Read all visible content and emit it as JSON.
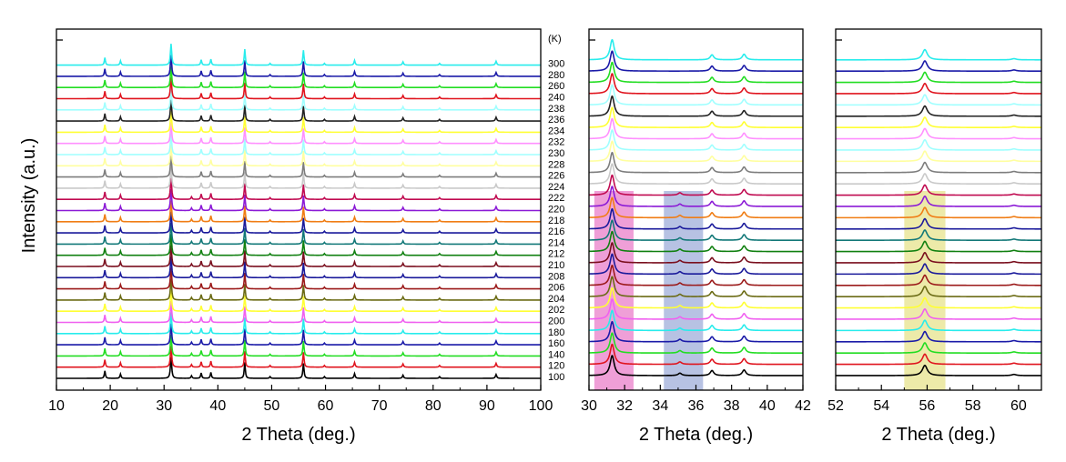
{
  "chart_data": {
    "type": "line",
    "ylabel": "Intensity (a.u.)",
    "temperature_unit_label": "(K)",
    "temperatures": [
      100,
      120,
      140,
      160,
      180,
      200,
      202,
      204,
      206,
      208,
      210,
      212,
      214,
      216,
      218,
      220,
      222,
      224,
      226,
      228,
      230,
      232,
      234,
      236,
      238,
      240,
      260,
      280,
      300
    ],
    "series_colors": [
      "#000000",
      "#e0141e",
      "#22dd22",
      "#1a1aa8",
      "#28ecec",
      "#f060f0",
      "#ffff33",
      "#6b6b14",
      "#9b1a1a",
      "#1a1a9b",
      "#7a0f1e",
      "#108010",
      "#127878",
      "#1a1a9b",
      "#f07d14",
      "#8b1ad6",
      "#c00a50",
      "#c9c9c9",
      "#7d7d7d",
      "#ffffa0",
      "#a0ffff",
      "#ff90ff",
      "#ffff33",
      "#222222",
      "#a0ffff",
      "#e0141e",
      "#22dd22",
      "#1a1aa8",
      "#28ecec"
    ],
    "peaks": [
      {
        "x": 19.0,
        "h": 0.35,
        "w": 0.12
      },
      {
        "x": 21.9,
        "h": 0.2,
        "w": 0.12
      },
      {
        "x": 31.3,
        "h": 1.0,
        "w": 0.14
      },
      {
        "x": 36.9,
        "h": 0.25,
        "w": 0.12
      },
      {
        "x": 38.7,
        "h": 0.28,
        "w": 0.12
      },
      {
        "x": 45.0,
        "h": 0.75,
        "w": 0.12
      },
      {
        "x": 49.7,
        "h": 0.08,
        "w": 0.12
      },
      {
        "x": 55.9,
        "h": 0.7,
        "w": 0.13
      },
      {
        "x": 59.8,
        "h": 0.08,
        "w": 0.12
      },
      {
        "x": 65.4,
        "h": 0.22,
        "w": 0.13
      },
      {
        "x": 74.4,
        "h": 0.15,
        "w": 0.13
      },
      {
        "x": 81.2,
        "h": 0.08,
        "w": 0.13
      },
      {
        "x": 91.7,
        "h": 0.18,
        "w": 0.14
      }
    ],
    "panels": [
      {
        "name": "full-range",
        "xlabel": "2 Theta (deg.)",
        "xlim": [
          10,
          100
        ],
        "xticks": [
          "10",
          "20",
          "30",
          "40",
          "50",
          "60",
          "70",
          "80",
          "90",
          "100"
        ],
        "shaded_regions": [],
        "show_temperature_labels": true
      },
      {
        "name": "zoom-30-42",
        "xlabel": "2 Theta (deg.)",
        "xlim": [
          30,
          42
        ],
        "xticks": [
          "30",
          "32",
          "34",
          "36",
          "38",
          "40",
          "42"
        ],
        "shaded_regions": [
          {
            "x0": 30.3,
            "x1": 32.5,
            "color": "#e040b0",
            "opacity": 0.5
          },
          {
            "x0": 34.2,
            "x1": 36.4,
            "color": "#3050b0",
            "opacity": 0.35
          }
        ],
        "show_temperature_labels": false
      },
      {
        "name": "zoom-52-61",
        "xlabel": "2 Theta (deg.)",
        "xlim": [
          52,
          61
        ],
        "xticks": [
          "52",
          "54",
          "56",
          "58",
          "60"
        ],
        "shaded_regions": [
          {
            "x0": 55.0,
            "x1": 56.8,
            "color": "#d8d040",
            "opacity": 0.45
          }
        ],
        "show_temperature_labels": false
      }
    ]
  }
}
